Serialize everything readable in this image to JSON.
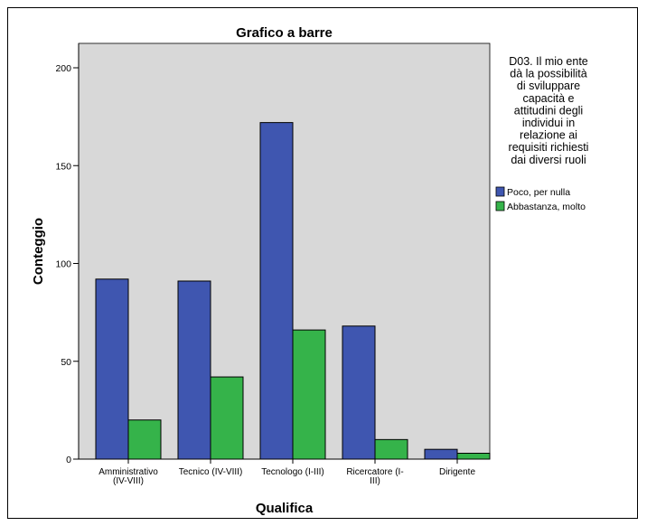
{
  "chart_data": {
    "type": "bar",
    "title": "Grafico a barre",
    "xlabel": "Qualifica",
    "ylabel": "Conteggio",
    "ylim": [
      0,
      200
    ],
    "yticks": [
      "0",
      "50",
      "100",
      "150",
      "200"
    ],
    "categories": [
      [
        "Amministrativo",
        "(IV-VIII)"
      ],
      [
        "Tecnico (IV-VIII)"
      ],
      [
        "Tecnologo (I-III)"
      ],
      [
        "Ricercatore (I-",
        "III)"
      ],
      [
        "Dirigente"
      ]
    ],
    "series": [
      {
        "name": "Poco, per nulla",
        "color": "#3f56b0",
        "values": [
          92,
          91,
          172,
          68,
          5
        ]
      },
      {
        "name": "Abbastanza, molto",
        "color": "#35b34a",
        "values": [
          20,
          42,
          66,
          10,
          3
        ]
      }
    ],
    "legend_title": [
      "D03. Il mio ente",
      "dà la possibilità",
      "di sviluppare",
      "capacità e",
      "attitudini degli",
      "individui in",
      "relazione ai",
      "requisiti richiesti",
      "dai diversi ruoli"
    ],
    "legend_position": "right",
    "plot_background": "#d8d8d8",
    "grid": false
  }
}
